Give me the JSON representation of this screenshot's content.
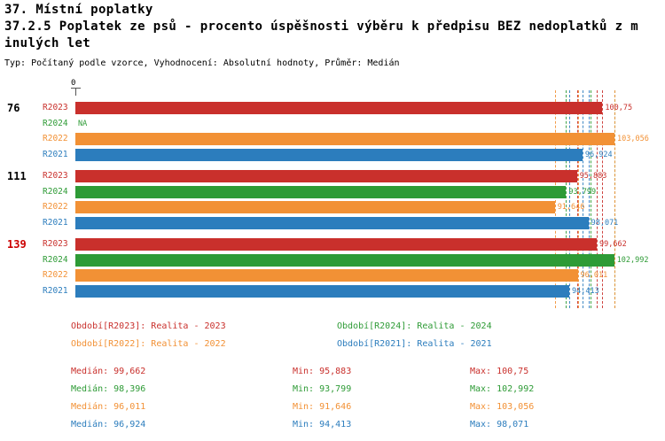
{
  "header": {
    "title": "37. Místní poplatky",
    "subtitle_line1": "37.2.5 Poplatek ze psů - procento úspěšnosti výběru k předpisu BEZ nedoplatků z m",
    "subtitle_line2": "inulých let",
    "meta": "Typ: Počítaný podle vzorce, Vyhodnocení: Absolutní hodnoty, Průměr: Medián"
  },
  "chart_data": {
    "type": "bar",
    "orientation": "horizontal",
    "title": "37.2.5 Poplatek ze psů - procento úspěšnosti výběru k předpisu BEZ nedoplatků z minulých let",
    "axis": {
      "origin_label": "0",
      "min": 0,
      "max_estimate": 110,
      "grid": "dashed-guides-only"
    },
    "series_colors": {
      "R2023": "#c9302c",
      "R2024": "#2e9b36",
      "R2022": "#f29135",
      "R2021": "#2c7dbd"
    },
    "groups": [
      {
        "label": "76",
        "label_color": "#000000",
        "bars": [
          {
            "series": "R2023",
            "value": 100.75,
            "label": "100,75"
          },
          {
            "series": "R2024",
            "value": null,
            "label": "NA"
          },
          {
            "series": "R2022",
            "value": 103.056,
            "label": "103,056"
          },
          {
            "series": "R2021",
            "value": 96.924,
            "label": "96,924"
          }
        ]
      },
      {
        "label": "111",
        "label_color": "#000000",
        "bars": [
          {
            "series": "R2023",
            "value": 95.883,
            "label": "95,883"
          },
          {
            "series": "R2024",
            "value": 93.799,
            "label": "93,799"
          },
          {
            "series": "R2022",
            "value": 91.646,
            "label": "91,646"
          },
          {
            "series": "R2021",
            "value": 98.071,
            "label": "98,071"
          }
        ]
      },
      {
        "label": "139",
        "label_color": "#cc0000",
        "bars": [
          {
            "series": "R2023",
            "value": 99.662,
            "label": "99,662"
          },
          {
            "series": "R2024",
            "value": 102.992,
            "label": "102,992"
          },
          {
            "series": "R2022",
            "value": 96.011,
            "label": "96,011"
          },
          {
            "series": "R2021",
            "value": 94.413,
            "label": "94,413"
          }
        ]
      }
    ],
    "legend": [
      {
        "series": "R2023",
        "label": "Období[R2023]: Realita - 2023"
      },
      {
        "series": "R2024",
        "label": "Období[R2024]: Realita - 2024"
      },
      {
        "series": "R2022",
        "label": "Období[R2022]: Realita - 2022"
      },
      {
        "series": "R2021",
        "label": "Období[R2021]: Realita - 2021"
      }
    ],
    "stats_labels": {
      "median": "Medián",
      "min": "Min",
      "max": "Max"
    },
    "stats": [
      {
        "series": "R2023",
        "median": "99,662",
        "min": "95,883",
        "max": "100,75",
        "median_v": 99.662,
        "min_v": 95.883,
        "max_v": 100.75
      },
      {
        "series": "R2024",
        "median": "98,396",
        "min": "93,799",
        "max": "102,992",
        "median_v": 98.396,
        "min_v": 93.799,
        "max_v": 102.992
      },
      {
        "series": "R2022",
        "median": "96,011",
        "min": "91,646",
        "max": "103,056",
        "median_v": 96.011,
        "min_v": 91.646,
        "max_v": 103.056
      },
      {
        "series": "R2021",
        "median": "96,924",
        "min": "94,413",
        "max": "98,071",
        "median_v": 96.924,
        "min_v": 94.413,
        "max_v": 98.071
      }
    ]
  }
}
